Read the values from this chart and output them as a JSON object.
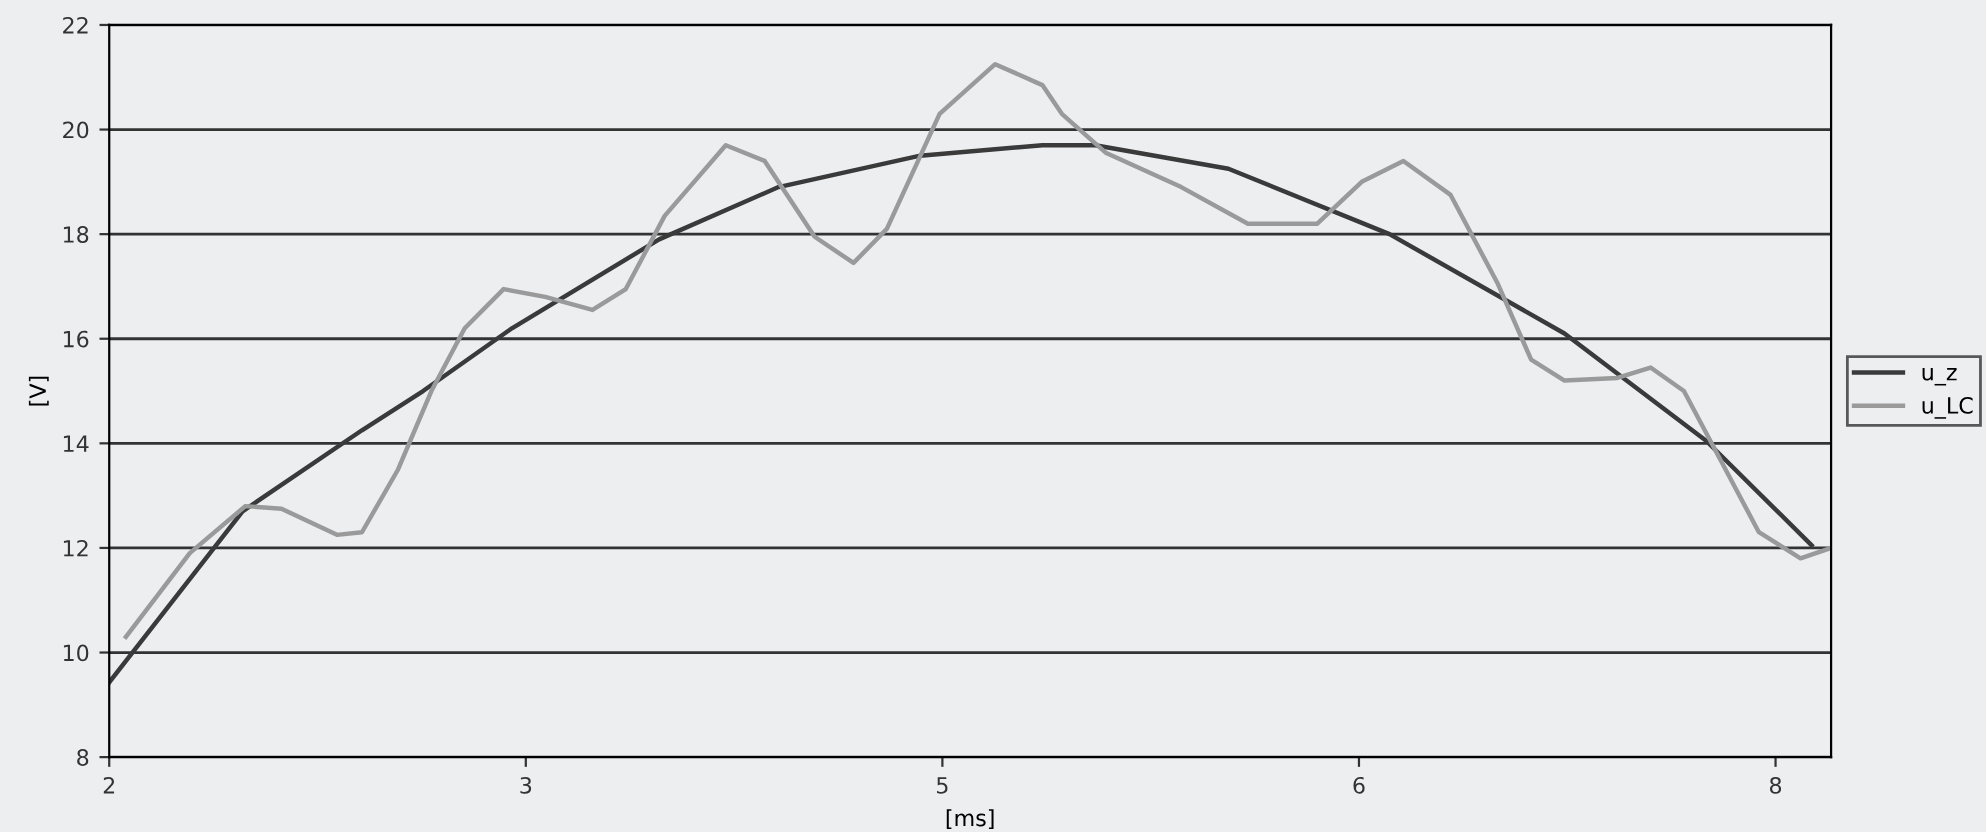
{
  "chart_data": {
    "type": "line",
    "xlabel": "[ms]",
    "ylabel": "[V]",
    "xlim": [
      2,
      8.2
    ],
    "xticks": [
      2,
      {
        "value": 3.5,
        "label": "3"
      },
      5,
      {
        "value": 6.5,
        "label": "6"
      },
      8
    ],
    "ylim": [
      8,
      22
    ],
    "yticks": [
      8,
      10,
      12,
      14,
      16,
      18,
      20,
      22
    ],
    "grid": "y",
    "legend": "right",
    "marker": "none",
    "line_style": "solid",
    "series": [
      {
        "name": "u_z",
        "color": "#3a3a3a",
        "x": [
          2.0,
          2.48,
          2.91,
          3.13,
          3.45,
          3.98,
          4.41,
          4.92,
          5.36,
          5.55,
          6.03,
          6.61,
          7.24,
          7.75,
          8.13
        ],
        "values": [
          9.43,
          12.7,
          14.25,
          15.0,
          16.2,
          17.9,
          18.9,
          19.5,
          19.7,
          19.7,
          19.25,
          18.0,
          16.1,
          14.05,
          12.05
        ]
      },
      {
        "name": "u_LC",
        "color": "#9a9a9a",
        "x": [
          2.06,
          2.29,
          2.49,
          2.62,
          2.82,
          2.91,
          3.04,
          3.16,
          3.28,
          3.42,
          3.57,
          3.74,
          3.86,
          4.0,
          4.22,
          4.36,
          4.54,
          4.68,
          4.8,
          4.99,
          5.19,
          5.36,
          5.43,
          5.59,
          5.86,
          6.1,
          6.35,
          6.51,
          6.66,
          6.83,
          7.0,
          7.12,
          7.24,
          7.43,
          7.55,
          7.67,
          7.8,
          7.94,
          8.09,
          8.2
        ],
        "values": [
          10.3,
          11.9,
          12.8,
          12.75,
          12.25,
          12.3,
          13.5,
          15.0,
          16.2,
          16.95,
          16.8,
          16.55,
          16.95,
          18.35,
          19.7,
          19.4,
          17.95,
          17.45,
          18.1,
          20.3,
          21.25,
          20.85,
          20.3,
          19.55,
          18.9,
          18.2,
          18.2,
          19.0,
          19.4,
          18.75,
          17.05,
          15.6,
          15.2,
          15.25,
          15.45,
          15.0,
          13.7,
          12.3,
          11.8,
          12.0
        ]
      }
    ]
  }
}
